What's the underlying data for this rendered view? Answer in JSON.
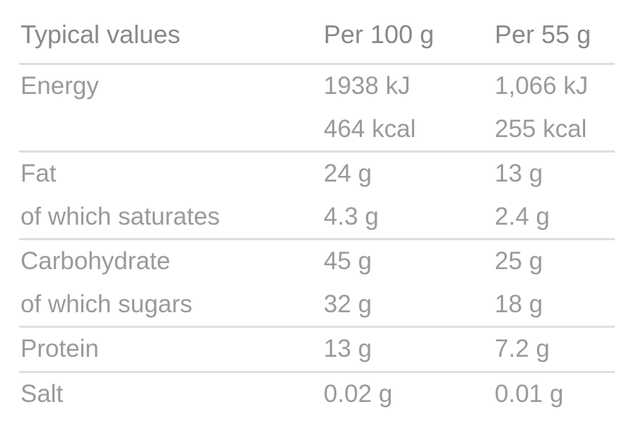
{
  "header": {
    "label": "Typical values",
    "col1": "Per 100 g",
    "col2": "Per 55 g"
  },
  "groups": [
    {
      "rows": [
        {
          "label": "Energy",
          "per100": "1938 kJ",
          "per55": "1,066 kJ"
        },
        {
          "label": "",
          "per100": "464 kcal",
          "per55": "255 kcal"
        }
      ]
    },
    {
      "rows": [
        {
          "label": "Fat",
          "per100": "24 g",
          "per55": "13 g"
        },
        {
          "label": "of which saturates",
          "per100": "4.3 g",
          "per55": "2.4 g"
        }
      ]
    },
    {
      "rows": [
        {
          "label": "Carbohydrate",
          "per100": "45 g",
          "per55": "25 g"
        },
        {
          "label": "of which sugars",
          "per100": "32 g",
          "per55": "18 g"
        }
      ]
    },
    {
      "rows": [
        {
          "label": "Protein",
          "per100": "13 g",
          "per55": "7.2 g"
        }
      ]
    },
    {
      "rows": [
        {
          "label": "Salt",
          "per100": "0.02 g",
          "per55": "0.01 g"
        }
      ]
    }
  ]
}
